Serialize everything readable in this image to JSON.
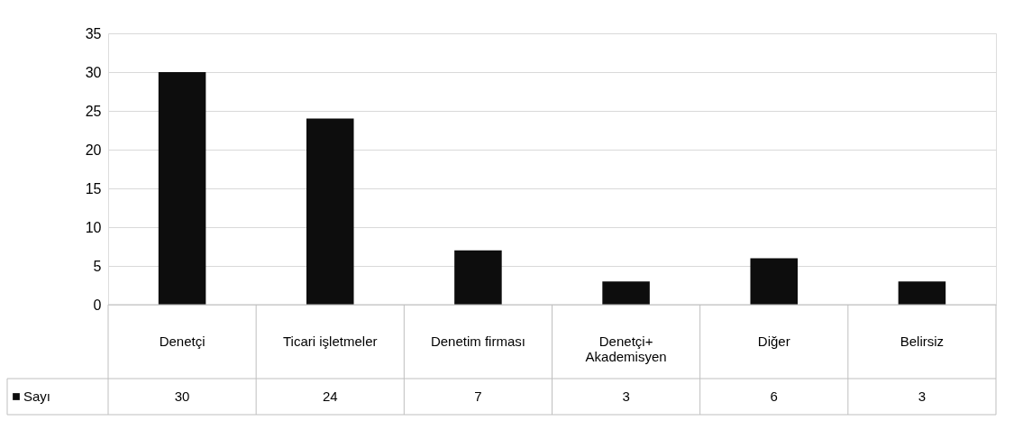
{
  "chart_data": {
    "type": "bar",
    "categories": [
      "Denetçi",
      "Ticari işletmeler",
      "Denetim firması",
      "Denetçi+\nAkademisyen",
      "Diğer",
      "Belirsiz"
    ],
    "series": [
      {
        "name": "Sayı",
        "color": "#0d0d0d",
        "values": [
          30,
          24,
          7,
          3,
          6,
          3
        ]
      }
    ],
    "ylim": [
      0,
      35
    ],
    "yticks": [
      0,
      5,
      10,
      15,
      20,
      25,
      30,
      35
    ],
    "grid": "y",
    "legend": "bottom left",
    "data_labels": true
  }
}
